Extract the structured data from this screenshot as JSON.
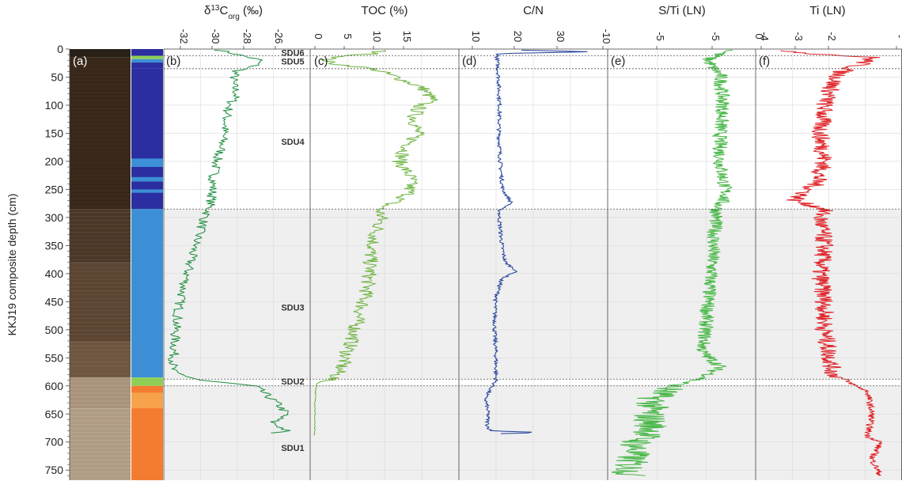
{
  "figure": {
    "ylabel": "KKJ19 composite depth (cm)",
    "depth_ticks": [
      0,
      50,
      100,
      150,
      200,
      250,
      300,
      350,
      400,
      450,
      500,
      550,
      600,
      650,
      700,
      750
    ]
  },
  "panels": {
    "a": {
      "label": "(a)"
    },
    "b": {
      "label": "(b)",
      "title_main": "δ",
      "title_sup": "13",
      "title_c": "C",
      "title_sub": "org",
      "title_unit": " (‰)",
      "ticks": [
        "-32",
        "-30",
        "-28",
        "-26"
      ],
      "color": "#1a8c3c"
    },
    "c": {
      "label": "(c)",
      "title": "TOC (%)",
      "ticks": [
        "0",
        "5",
        "10",
        "15",
        "20"
      ],
      "color": "#6db33f"
    },
    "d": {
      "label": "(d)",
      "title": "C/N",
      "ticks": [
        "10",
        "20",
        "30",
        "-10"
      ],
      "color": "#1f3f99"
    },
    "e": {
      "label": "(e)",
      "title": "S/Ti (LN)",
      "ticks": [
        "-5",
        "-5"
      ],
      "color": "#49b848"
    },
    "f": {
      "label": "(f)",
      "title": "Ti (LN)",
      "ticks": [
        "-4",
        "-3",
        "-2",
        "-"
      ],
      "zero_tick": "0",
      "color": "#e0262b"
    }
  },
  "units": [
    {
      "name": "SDU6",
      "top": 0,
      "bottom": 12
    },
    {
      "name": "SDU5",
      "top": 12,
      "bottom": 35
    },
    {
      "name": "SDU4",
      "top": 35,
      "bottom": 285
    },
    {
      "name": "SDU3",
      "top": 285,
      "bottom": 588
    },
    {
      "name": "SDU2",
      "top": 588,
      "bottom": 600
    },
    {
      "name": "SDU1",
      "top": 600,
      "bottom": 768
    }
  ],
  "colors": {
    "grid": "#d9d9d9",
    "shade": "#efefef",
    "lith_dark_blue": "#2b2ea0",
    "lith_light_blue": "#3d8fd6",
    "lith_green": "#8fcf55",
    "lith_orange": "#f47c30"
  },
  "chart_data": {
    "type": "line",
    "y_axis": "depth (cm)",
    "ylim": [
      0,
      768
    ],
    "series": [
      {
        "panel": "b",
        "xlim": [
          -34,
          -24
        ],
        "depth": [
          2,
          10,
          20,
          30,
          40,
          60,
          80,
          100,
          120,
          150,
          180,
          200,
          230,
          260,
          285,
          300,
          330,
          360,
          400,
          450,
          500,
          540,
          575,
          590,
          600,
          612,
          630,
          650,
          665,
          680,
          685
        ],
        "values": [
          -30.2,
          -28.9,
          -27.4,
          -27.8,
          -29.1,
          -29.3,
          -29.0,
          -29.5,
          -29.7,
          -29.9,
          -30.1,
          -30.4,
          -30.6,
          -30.7,
          -30.9,
          -31.2,
          -31.6,
          -32.0,
          -32.4,
          -32.9,
          -33.2,
          -33.3,
          -33.4,
          -31.5,
          -27.8,
          -27.2,
          -26.3,
          -25.6,
          -26.6,
          -25.6,
          -26.8
        ]
      },
      {
        "panel": "c",
        "xlim": [
          0,
          25
        ],
        "depth": [
          2,
          8,
          12,
          18,
          25,
          35,
          50,
          70,
          90,
          100,
          120,
          150,
          180,
          200,
          230,
          260,
          285,
          300,
          330,
          360,
          400,
          440,
          480,
          520,
          560,
          585,
          595,
          610,
          650,
          690
        ],
        "values": [
          12.0,
          10.8,
          6.5,
          2.8,
          3.2,
          10.5,
          14.5,
          19.0,
          20.5,
          18.5,
          17.5,
          18.0,
          16.0,
          15.0,
          17.0,
          16.5,
          11.5,
          12.0,
          11.0,
          10.2,
          10.0,
          9.3,
          8.0,
          7.0,
          5.5,
          4.2,
          1.2,
          0.9,
          0.8,
          0.7
        ]
      },
      {
        "panel": "d",
        "xlim": [
          0,
          45
        ],
        "depth": [
          2,
          5,
          8,
          15,
          50,
          100,
          150,
          200,
          250,
          275,
          285,
          300,
          350,
          380,
          395,
          410,
          450,
          500,
          550,
          590,
          600,
          620,
          650,
          670,
          680,
          683,
          686
        ],
        "values": [
          19,
          40,
          12,
          11.5,
          12.0,
          12.3,
          12.1,
          12.5,
          13.2,
          16.0,
          12.4,
          12.2,
          13.0,
          14.0,
          17.5,
          12.8,
          11.0,
          10.8,
          11.2,
          11.2,
          10.2,
          8.0,
          8.8,
          8.6,
          9.5,
          25.0,
          9.0
        ]
      },
      {
        "panel": "e",
        "xlim": [
          -8,
          -3
        ],
        "depth": [
          2,
          8,
          18,
          30,
          45,
          100,
          150,
          200,
          260,
          285,
          330,
          400,
          450,
          500,
          540,
          565,
          585,
          600,
          620,
          650,
          680,
          700,
          730,
          760
        ],
        "values": [
          -3.8,
          -4.2,
          -4.6,
          -4.5,
          -4.2,
          -4.1,
          -4.2,
          -4.2,
          -4.0,
          -4.3,
          -4.4,
          -4.5,
          -4.6,
          -4.7,
          -4.8,
          -4.2,
          -4.7,
          -5.8,
          -6.4,
          -6.6,
          -6.5,
          -7.0,
          -7.2,
          -7.3
        ]
      },
      {
        "panel": "f",
        "xlim": [
          -4.2,
          -0.8
        ],
        "depth": [
          2,
          8,
          15,
          25,
          40,
          60,
          100,
          150,
          200,
          240,
          270,
          285,
          300,
          350,
          400,
          450,
          500,
          540,
          580,
          595,
          610,
          650,
          690,
          700,
          730,
          760
        ],
        "values": [
          -3.6,
          -2.9,
          -1.5,
          -1.7,
          -2.2,
          -2.4,
          -2.6,
          -2.7,
          -2.6,
          -2.8,
          -3.3,
          -2.6,
          -2.7,
          -2.6,
          -2.7,
          -2.6,
          -2.6,
          -2.5,
          -2.4,
          -2.0,
          -1.6,
          -1.5,
          -1.6,
          -1.3,
          -1.5,
          -1.3
        ]
      }
    ]
  }
}
